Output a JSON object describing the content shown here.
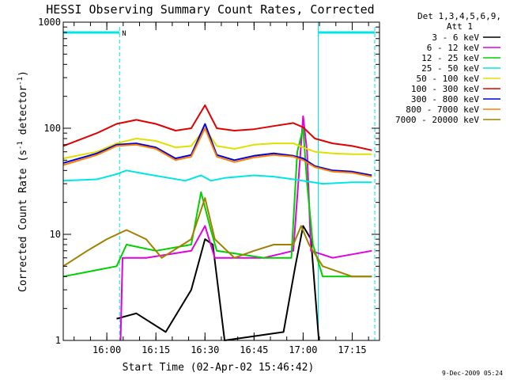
{
  "chart_data": {
    "type": "line",
    "title": "HESSI Observing Summary Count Rates, Corrected",
    "xlabel": "Start Time (02-Apr-02 15:46:42)",
    "ylabel": "Corrected Count Rate (s",
    "ylabel_sup": "-1",
    "ylabel_mid": " detector",
    "ylabel_sup2": "-1",
    "ylabel_end": ")",
    "yscale": "log",
    "ylim": [
      1,
      1000
    ],
    "xlim": [
      15.778,
      17.389
    ],
    "yticks": [
      {
        "v": 1,
        "label": "1"
      },
      {
        "v": 10,
        "label": "10"
      },
      {
        "v": 100,
        "label": "100"
      },
      {
        "v": 1000,
        "label": "1000"
      }
    ],
    "xticks": [
      {
        "v": 16.0,
        "label": "16:00"
      },
      {
        "v": 16.25,
        "label": "16:15"
      },
      {
        "v": 16.5,
        "label": "16:30"
      },
      {
        "v": 16.75,
        "label": "16:45"
      },
      {
        "v": 17.0,
        "label": "17:00"
      },
      {
        "v": 17.25,
        "label": "17:15"
      }
    ],
    "legend_header": [
      "Det 1,3,4,5,6,9,",
      "Att 1"
    ],
    "legend_position": "right",
    "footer": "9-Dec-2009 05:24",
    "night_label": "N",
    "night_color": "#00e5e5",
    "night_intervals": [
      [
        15.778,
        16.065
      ],
      [
        17.077,
        17.365
      ]
    ],
    "series": [
      {
        "name": "3 - 6 keV",
        "color": "#000000",
        "points": [
          [
            16.05,
            1.6
          ],
          [
            16.15,
            1.8
          ],
          [
            16.3,
            1.2
          ],
          [
            16.43,
            3
          ],
          [
            16.5,
            9
          ],
          [
            16.54,
            8
          ],
          [
            16.6,
            1
          ],
          [
            16.9,
            1.2
          ],
          [
            16.96,
            5
          ],
          [
            17.0,
            12
          ],
          [
            17.04,
            9
          ],
          [
            17.08,
            1
          ]
        ]
      },
      {
        "name": "6 - 12 keV",
        "color": "#e000e0",
        "points": [
          [
            16.07,
            1
          ],
          [
            16.08,
            6
          ],
          [
            16.2,
            6
          ],
          [
            16.43,
            7
          ],
          [
            16.5,
            12
          ],
          [
            16.55,
            6
          ],
          [
            16.8,
            6
          ],
          [
            16.95,
            7
          ],
          [
            16.98,
            40
          ],
          [
            17.0,
            130
          ],
          [
            17.02,
            60
          ],
          [
            17.04,
            7
          ],
          [
            17.15,
            6
          ],
          [
            17.35,
            7
          ]
        ]
      },
      {
        "name": "12 - 25 keV",
        "color": "#00d000",
        "points": [
          [
            15.778,
            4
          ],
          [
            16.05,
            5
          ],
          [
            16.1,
            8
          ],
          [
            16.25,
            7
          ],
          [
            16.43,
            8
          ],
          [
            16.48,
            25
          ],
          [
            16.53,
            11
          ],
          [
            16.56,
            7
          ],
          [
            16.8,
            6
          ],
          [
            16.94,
            6
          ],
          [
            16.97,
            60
          ],
          [
            17.0,
            100
          ],
          [
            17.02,
            30
          ],
          [
            17.05,
            8
          ],
          [
            17.1,
            4
          ],
          [
            17.35,
            4
          ]
        ]
      },
      {
        "name": "25 - 50 keV",
        "color": "#00e5e5",
        "points": [
          [
            15.778,
            32
          ],
          [
            15.95,
            33
          ],
          [
            16.05,
            37
          ],
          [
            16.1,
            40
          ],
          [
            16.2,
            37
          ],
          [
            16.4,
            32
          ],
          [
            16.48,
            36
          ],
          [
            16.53,
            32
          ],
          [
            16.6,
            34
          ],
          [
            16.75,
            36
          ],
          [
            16.85,
            35
          ],
          [
            16.95,
            33
          ],
          [
            17.05,
            31
          ],
          [
            17.1,
            30
          ],
          [
            17.25,
            31
          ],
          [
            17.35,
            31
          ]
        ]
      },
      {
        "name": "50 - 100 keV",
        "color": "#e0e000",
        "points": [
          [
            15.778,
            52
          ],
          [
            15.95,
            60
          ],
          [
            16.05,
            72
          ],
          [
            16.15,
            80
          ],
          [
            16.25,
            76
          ],
          [
            16.35,
            66
          ],
          [
            16.43,
            68
          ],
          [
            16.5,
            100
          ],
          [
            16.56,
            68
          ],
          [
            16.65,
            64
          ],
          [
            16.75,
            70
          ],
          [
            16.85,
            72
          ],
          [
            16.95,
            72
          ],
          [
            17.0,
            66
          ],
          [
            17.06,
            60
          ],
          [
            17.15,
            58
          ],
          [
            17.25,
            57
          ],
          [
            17.35,
            57
          ]
        ]
      },
      {
        "name": "100 - 300 keV",
        "color": "#e00000",
        "points": [
          [
            15.778,
            68
          ],
          [
            15.95,
            90
          ],
          [
            16.05,
            110
          ],
          [
            16.15,
            120
          ],
          [
            16.25,
            110
          ],
          [
            16.35,
            95
          ],
          [
            16.43,
            100
          ],
          [
            16.5,
            165
          ],
          [
            16.56,
            100
          ],
          [
            16.65,
            95
          ],
          [
            16.75,
            98
          ],
          [
            16.85,
            105
          ],
          [
            16.95,
            112
          ],
          [
            17.0,
            102
          ],
          [
            17.06,
            80
          ],
          [
            17.15,
            72
          ],
          [
            17.25,
            68
          ],
          [
            17.35,
            62
          ]
        ]
      },
      {
        "name": "300 - 800 keV",
        "color": "#0000e0",
        "points": [
          [
            15.778,
            47
          ],
          [
            15.95,
            58
          ],
          [
            16.05,
            70
          ],
          [
            16.15,
            72
          ],
          [
            16.25,
            66
          ],
          [
            16.35,
            52
          ],
          [
            16.43,
            56
          ],
          [
            16.5,
            110
          ],
          [
            16.56,
            56
          ],
          [
            16.65,
            50
          ],
          [
            16.75,
            55
          ],
          [
            16.85,
            58
          ],
          [
            16.95,
            55
          ],
          [
            17.0,
            52
          ],
          [
            17.06,
            44
          ],
          [
            17.15,
            40
          ],
          [
            17.25,
            39
          ],
          [
            17.35,
            36
          ]
        ]
      },
      {
        "name": "800 - 7000 keV",
        "color": "#ff8000",
        "points": [
          [
            15.778,
            45
          ],
          [
            15.95,
            56
          ],
          [
            16.05,
            68
          ],
          [
            16.15,
            70
          ],
          [
            16.25,
            64
          ],
          [
            16.35,
            50
          ],
          [
            16.43,
            54
          ],
          [
            16.5,
            100
          ],
          [
            16.56,
            54
          ],
          [
            16.65,
            48
          ],
          [
            16.75,
            53
          ],
          [
            16.85,
            56
          ],
          [
            16.95,
            54
          ],
          [
            17.0,
            50
          ],
          [
            17.06,
            43
          ],
          [
            17.15,
            39
          ],
          [
            17.25,
            38
          ],
          [
            17.35,
            35
          ]
        ]
      },
      {
        "name": "7000 - 20000 keV",
        "color": "#a08000",
        "points": [
          [
            15.778,
            5
          ],
          [
            15.9,
            7
          ],
          [
            16.0,
            9
          ],
          [
            16.1,
            11
          ],
          [
            16.2,
            9
          ],
          [
            16.28,
            6
          ],
          [
            16.43,
            9
          ],
          [
            16.5,
            22
          ],
          [
            16.55,
            9
          ],
          [
            16.65,
            6
          ],
          [
            16.75,
            7
          ],
          [
            16.85,
            8
          ],
          [
            16.95,
            8
          ],
          [
            16.99,
            12
          ],
          [
            17.03,
            8
          ],
          [
            17.1,
            5
          ],
          [
            17.25,
            4
          ],
          [
            17.35,
            4
          ]
        ]
      }
    ]
  }
}
